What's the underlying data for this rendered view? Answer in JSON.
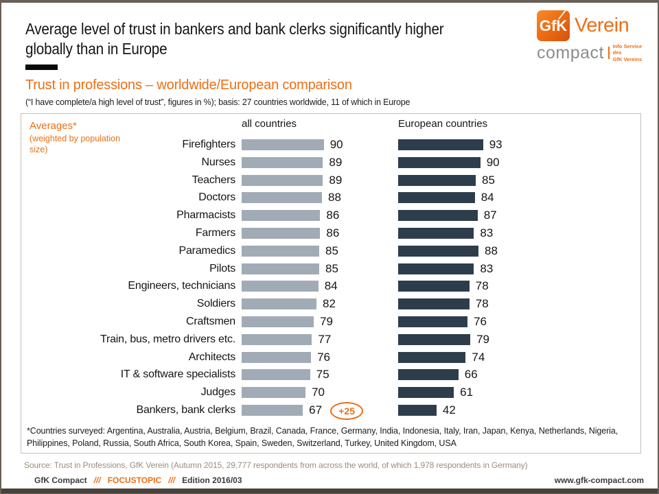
{
  "header": {
    "title_line1": "Average level of trust in bankers and bank clerks significantly higher",
    "title_line2": "globally than in Europe",
    "subtitle": "Trust in professions – worldwide/European comparison",
    "basis_note": "(“I have complete/a high level of trust”, figures in %); basis: 27 countries worldwide, 11 of which in Europe"
  },
  "logo": {
    "brand": "GfK",
    "brand_suffix": "Verein",
    "product": "compact",
    "tagline_line1": "Info Service des",
    "tagline_line2": "GfK Vereins"
  },
  "chart_data": {
    "type": "bar",
    "orientation": "horizontal",
    "unit": "percent",
    "xlim": [
      0,
      100
    ],
    "panel_note_title": "Averages*",
    "panel_note_detail": "(weighted by population size)",
    "categories": [
      "Firefighters",
      "Nurses",
      "Teachers",
      "Doctors",
      "Pharmacists",
      "Farmers",
      "Paramedics",
      "Pilots",
      "Engineers, technicians",
      "Soldiers",
      "Craftsmen",
      "Train, bus, metro drivers etc.",
      "Architects",
      "IT & software specialists",
      "Judges",
      "Bankers, bank clerks"
    ],
    "series": [
      {
        "name": "all countries",
        "color": "#A1ABB5",
        "values": [
          90,
          89,
          89,
          88,
          86,
          86,
          85,
          85,
          84,
          82,
          79,
          77,
          76,
          75,
          70,
          67
        ]
      },
      {
        "name": "European countries",
        "color": "#2E3D4C",
        "values": [
          93,
          90,
          85,
          84,
          87,
          83,
          88,
          83,
          78,
          78,
          76,
          79,
          74,
          66,
          61,
          42
        ]
      }
    ],
    "annotation": {
      "text": "+25",
      "row": "Bankers, bank clerks",
      "color": "#ED6E14"
    }
  },
  "footnote": "*Countries surveyed: Argentina, Australia, Austria, Belgium, Brazil, Canada, France, Germany, India, Indonesia, Italy, Iran, Japan, Kenya, Netherlands, Nigeria, Philippines, Poland, Russia, South Africa, South Korea, Spain, Sweden, Switzerland, Turkey, United Kingdom, USA",
  "source_note": "Source: Trust in Professions, GfK Verein (Autumn 2015, 29,777 respondents from across the world, of which 1,978 respondents in Germany)",
  "footer": {
    "brand": "GfK Compact",
    "separator1": "///",
    "topic": "FOCUSTOPIC",
    "separator2": "///",
    "edition": "Edition 2016/03",
    "website": "www.gfk-compact.com"
  },
  "colors": {
    "accent_orange": "#ED6E14",
    "bar_all_countries": "#A1ABB5",
    "bar_european": "#2E3D4C",
    "frame": "#6A6057"
  }
}
